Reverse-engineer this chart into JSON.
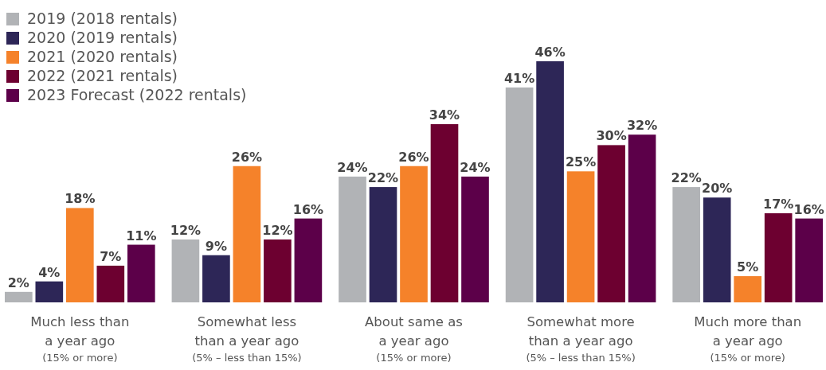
{
  "chart_data": {
    "type": "bar",
    "categories": [
      "Much less than\na year ago\n(15% or more)",
      "Somewhat less\nthan a year ago\n(5% – less than 15%)",
      "About same as\na year ago\n(15% or more)",
      "Somewhat more\nthan a year ago\n(5% – less than 15%)",
      "Much more than\na year ago\n(15% or more)"
    ],
    "series": [
      {
        "name": "2019 (2018 rentals)",
        "color": "#b1b3b6",
        "values": [
          2,
          12,
          24,
          41,
          22
        ],
        "value_labels": [
          "2%",
          "12%",
          "24%",
          "41%",
          "22%"
        ]
      },
      {
        "name": "2020 (2019 rentals)",
        "color": "#2d2657",
        "values": [
          4,
          9,
          22,
          46,
          20
        ],
        "value_labels": [
          "4%",
          "9%",
          "22%",
          "46%",
          "20%"
        ]
      },
      {
        "name": "2021 (2020 rentals)",
        "color": "#f5822a",
        "values": [
          18,
          26,
          26,
          25,
          5
        ],
        "value_labels": [
          "18%",
          "26%",
          "26%",
          "25%",
          "5%"
        ]
      },
      {
        "name": "2022 (2021 rentals)",
        "color": "#6d0030",
        "values": [
          7,
          12,
          34,
          30,
          17
        ],
        "value_labels": [
          "7%",
          "12%",
          "34%",
          "30%",
          "17%"
        ]
      },
      {
        "name": "2023 Forecast (2022 rentals)",
        "color": "#5c0049",
        "values": [
          11,
          16,
          24,
          32,
          16
        ],
        "value_labels": [
          "11%",
          "16%",
          "24%",
          "32%",
          "16%"
        ]
      }
    ],
    "legend": "top left",
    "tick_labels": "x"
  }
}
